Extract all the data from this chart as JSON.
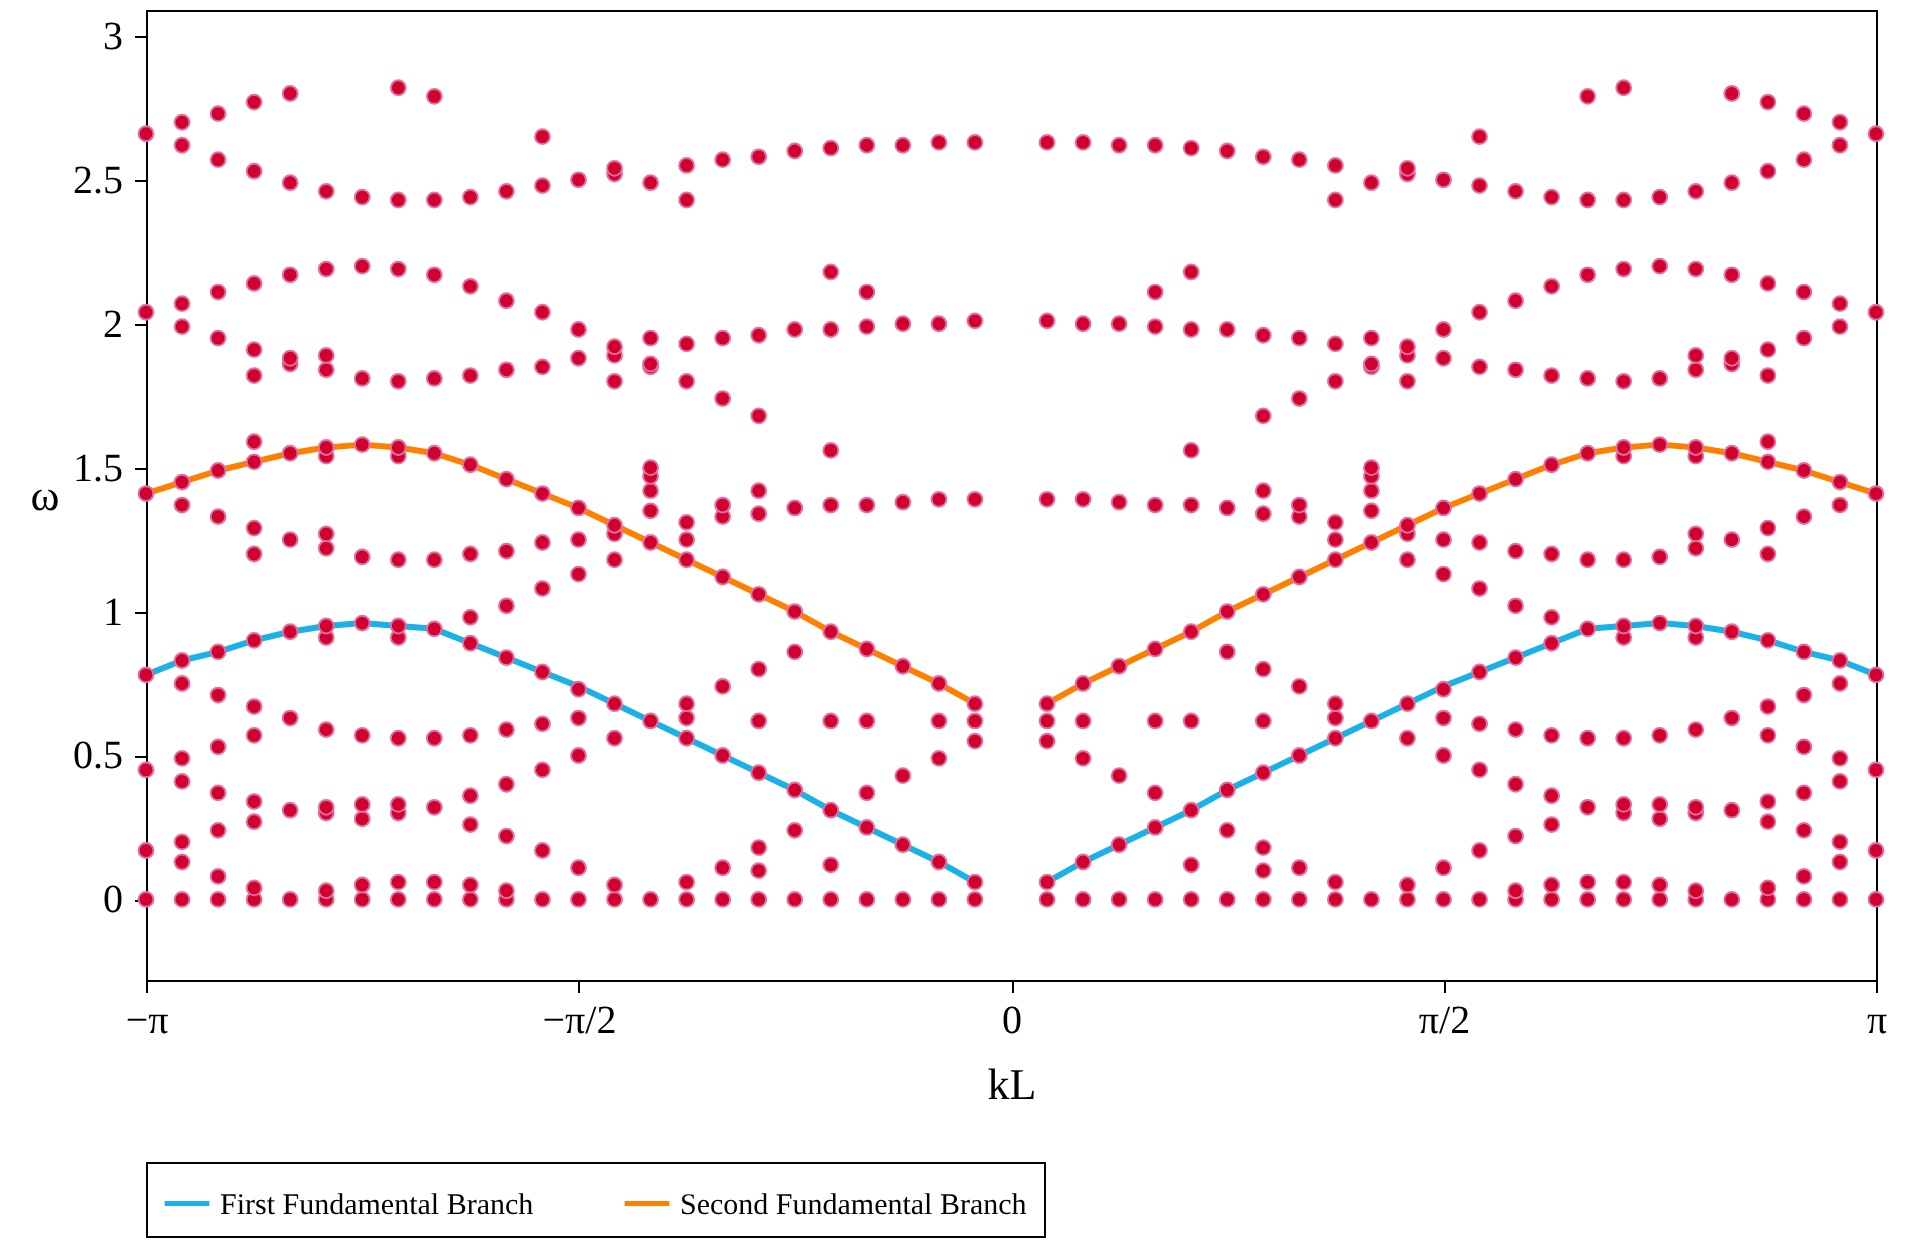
{
  "chart_data": {
    "type": "scatter",
    "xlabel": "kL",
    "ylabel": "ω",
    "xlim": [
      -3.1416,
      3.1416
    ],
    "ylim": [
      -0.28,
      3.09
    ],
    "xticks": [
      {
        "value": -3.1416,
        "label": "−π"
      },
      {
        "value": -1.5708,
        "label": "−π/2"
      },
      0,
      {
        "value": 1.5708,
        "label": "π/2"
      },
      {
        "value": 3.1416,
        "label": "π"
      }
    ],
    "yticks": [
      0,
      0.5,
      1,
      1.5,
      2,
      2.5,
      3
    ],
    "grid": false,
    "legend": "bottom",
    "line_style": "solid",
    "series": [
      {
        "name": "First Fundamental Branch",
        "type": "line",
        "color": "#1ab0e8",
        "x": [
          -3.1416,
          -3.0107,
          -2.8798,
          -2.7489,
          -2.618,
          -2.4871,
          -2.3562,
          -2.2253,
          -2.0944,
          -1.9635,
          -1.8326,
          -1.7017,
          -1.5708,
          -1.4399,
          -1.309,
          -1.1781,
          -1.0472,
          -0.9163,
          -0.7854,
          -0.6545,
          -0.5236,
          -0.3927,
          -0.2618,
          -0.1309
        ],
        "values": [
          0.78,
          0.83,
          0.86,
          0.9,
          0.93,
          0.95,
          0.96,
          0.95,
          0.94,
          0.89,
          0.84,
          0.79,
          0.74,
          0.68,
          0.62,
          0.56,
          0.5,
          0.44,
          0.38,
          0.31,
          0.25,
          0.19,
          0.13,
          0.06
        ]
      },
      {
        "type": "line",
        "color": "#1ab0e8",
        "x": [
          0.1309,
          0.2618,
          0.3927,
          0.5236,
          0.6545,
          0.7854,
          0.9163,
          1.0472,
          1.1781,
          1.309,
          1.4399,
          1.5708,
          1.7017,
          1.8326,
          1.9635,
          2.0944,
          2.2253,
          2.3562,
          2.4871,
          2.618,
          2.7489,
          2.8798,
          3.0107,
          3.1416
        ],
        "values": [
          0.06,
          0.13,
          0.19,
          0.25,
          0.31,
          0.38,
          0.44,
          0.5,
          0.56,
          0.62,
          0.68,
          0.74,
          0.79,
          0.84,
          0.89,
          0.94,
          0.95,
          0.96,
          0.95,
          0.93,
          0.9,
          0.86,
          0.83,
          0.78
        ]
      },
      {
        "name": "Second Fundamental Branch",
        "type": "line",
        "color": "#ff8000",
        "x": [
          -3.1416,
          -3.0107,
          -2.8798,
          -2.7489,
          -2.618,
          -2.4871,
          -2.3562,
          -2.2253,
          -2.0944,
          -1.9635,
          -1.8326,
          -1.7017,
          -1.5708,
          -1.4399,
          -1.309,
          -1.1781,
          -1.0472,
          -0.9163,
          -0.7854,
          -0.6545,
          -0.5236,
          -0.3927,
          -0.2618,
          -0.1309
        ],
        "values": [
          1.41,
          1.45,
          1.49,
          1.52,
          1.55,
          1.57,
          1.58,
          1.57,
          1.55,
          1.51,
          1.46,
          1.41,
          1.36,
          1.3,
          1.24,
          1.18,
          1.12,
          1.06,
          1.0,
          0.93,
          0.87,
          0.81,
          0.75,
          0.68
        ]
      },
      {
        "type": "line",
        "color": "#ff8000",
        "x": [
          0.1309,
          0.2618,
          0.3927,
          0.5236,
          0.6545,
          0.7854,
          0.9163,
          1.0472,
          1.1781,
          1.309,
          1.4399,
          1.5708,
          1.7017,
          1.8326,
          1.9635,
          2.0944,
          2.2253,
          2.3562,
          2.4871,
          2.618,
          2.7489,
          2.8798,
          3.0107,
          3.1416
        ],
        "values": [
          0.68,
          0.75,
          0.81,
          0.87,
          0.93,
          1.0,
          1.06,
          1.12,
          1.18,
          1.24,
          1.3,
          1.36,
          1.41,
          1.46,
          1.51,
          1.55,
          1.57,
          1.58,
          1.57,
          1.55,
          1.52,
          1.49,
          1.45,
          1.41
        ]
      },
      {
        "color": "#d0002f",
        "marker": "circle",
        "x": [
          -3.1416,
          -3.1416,
          -3.1416,
          -3.1416,
          -3.1416,
          -3.1416,
          -3.1416,
          -3.0107,
          -3.0107,
          -3.0107,
          -3.0107,
          -3.0107,
          -3.0107,
          -3.0107,
          -3.0107,
          -3.0107,
          -3.0107,
          -3.0107,
          -3.0107,
          -3.0107,
          -2.8798,
          -2.8798,
          -2.8798,
          -2.8798,
          -2.8798,
          -2.8798,
          -2.8798,
          -2.8798,
          -2.8798,
          -2.8798,
          -2.8798,
          -2.8798,
          -2.8798,
          -2.7489,
          -2.7489,
          -2.7489,
          -2.7489,
          -2.7489,
          -2.7489,
          -2.7489,
          -2.7489,
          -2.7489,
          -2.7489,
          -2.7489,
          -2.7489,
          -2.7489,
          -2.7489,
          -2.7489,
          -2.7489,
          -2.618,
          -2.618,
          -2.618,
          -2.618,
          -2.618,
          -2.618,
          -2.618,
          -2.618,
          -2.618,
          -2.618,
          -2.618,
          -2.4871,
          -2.4871,
          -2.4871,
          -2.4871,
          -2.4871,
          -2.4871,
          -2.4871,
          -2.4871,
          -2.4871,
          -2.4871,
          -2.4871,
          -2.4871,
          -2.4871,
          -2.4871,
          -2.4871,
          -2.3562,
          -2.3562,
          -2.3562,
          -2.3562,
          -2.3562,
          -2.3562,
          -2.3562,
          -2.3562,
          -2.3562,
          -2.3562,
          -2.3562,
          -2.2253,
          -2.2253,
          -2.2253,
          -2.2253,
          -2.2253,
          -2.2253,
          -2.2253,
          -2.2253,
          -2.2253,
          -2.2253,
          -2.2253,
          -2.2253,
          -2.2253,
          -2.2253,
          -2.0944,
          -2.0944,
          -2.0944,
          -2.0944,
          -2.0944,
          -2.0944,
          -2.0944,
          -2.0944,
          -2.0944,
          -2.0944,
          -2.0944,
          -1.9635,
          -1.9635,
          -1.9635,
          -1.9635,
          -1.9635,
          -1.9635,
          -1.9635,
          -1.9635,
          -1.9635,
          -1.9635,
          -1.9635,
          -1.9635,
          -1.8326,
          -1.8326,
          -1.8326,
          -1.8326,
          -1.8326,
          -1.8326,
          -1.8326,
          -1.8326,
          -1.8326,
          -1.8326,
          -1.8326,
          -1.8326,
          -1.7017,
          -1.7017,
          -1.7017,
          -1.7017,
          -1.7017,
          -1.7017,
          -1.7017,
          -1.7017,
          -1.7017,
          -1.7017,
          -1.7017,
          -1.7017,
          -1.5708,
          -1.5708,
          -1.5708,
          -1.5708,
          -1.5708,
          -1.5708,
          -1.5708,
          -1.5708,
          -1.5708,
          -1.5708,
          -1.5708,
          -1.4399,
          -1.4399,
          -1.4399,
          -1.4399,
          -1.4399,
          -1.4399,
          -1.4399,
          -1.4399,
          -1.4399,
          -1.4399,
          -1.4399,
          -1.4399,
          -1.309,
          -1.309,
          -1.309,
          -1.309,
          -1.309,
          -1.309,
          -1.309,
          -1.309,
          -1.309,
          -1.309,
          -1.309,
          -1.1781,
          -1.1781,
          -1.1781,
          -1.1781,
          -1.1781,
          -1.1781,
          -1.1781,
          -1.1781,
          -1.1781,
          -1.1781,
          -1.1781,
          -1.1781,
          -1.0472,
          -1.0472,
          -1.0472,
          -1.0472,
          -1.0472,
          -1.0472,
          -1.0472,
          -1.0472,
          -1.0472,
          -1.0472,
          -0.9163,
          -0.9163,
          -0.9163,
          -0.9163,
          -0.9163,
          -0.9163,
          -0.9163,
          -0.9163,
          -0.9163,
          -0.9163,
          -0.9163,
          -0.9163,
          -0.7854,
          -0.7854,
          -0.7854,
          -0.7854,
          -0.7854,
          -0.7854,
          -0.7854,
          -0.7854,
          -0.6545,
          -0.6545,
          -0.6545,
          -0.6545,
          -0.6545,
          -0.6545,
          -0.6545,
          -0.6545,
          -0.6545,
          -0.6545,
          -0.5236,
          -0.5236,
          -0.5236,
          -0.5236,
          -0.5236,
          -0.5236,
          -0.5236,
          -0.5236,
          -0.5236,
          -0.3927,
          -0.3927,
          -0.3927,
          -0.3927,
          -0.3927,
          -0.3927,
          -0.3927,
          -0.2618,
          -0.2618,
          -0.2618,
          -0.2618,
          -0.2618,
          -0.2618,
          -0.2618,
          -0.2618,
          -0.1309,
          -0.1309,
          -0.1309,
          -0.1309,
          -0.1309,
          -0.1309,
          -0.1309,
          -0.1309,
          3.1416,
          3.1416,
          3.1416,
          3.1416,
          3.1416,
          3.1416,
          3.1416,
          3.0107,
          3.0107,
          3.0107,
          3.0107,
          3.0107,
          3.0107,
          3.0107,
          3.0107,
          3.0107,
          3.0107,
          3.0107,
          3.0107,
          3.0107,
          2.8798,
          2.8798,
          2.8798,
          2.8798,
          2.8798,
          2.8798,
          2.8798,
          2.8798,
          2.8798,
          2.8798,
          2.8798,
          2.8798,
          2.8798,
          2.7489,
          2.7489,
          2.7489,
          2.7489,
          2.7489,
          2.7489,
          2.7489,
          2.7489,
          2.7489,
          2.7489,
          2.7489,
          2.7489,
          2.7489,
          2.7489,
          2.7489,
          2.7489,
          2.618,
          2.618,
          2.618,
          2.618,
          2.618,
          2.618,
          2.618,
          2.618,
          2.618,
          2.618,
          2.618,
          2.4871,
          2.4871,
          2.4871,
          2.4871,
          2.4871,
          2.4871,
          2.4871,
          2.4871,
          2.4871,
          2.4871,
          2.4871,
          2.4871,
          2.4871,
          2.4871,
          2.4871,
          2.3562,
          2.3562,
          2.3562,
          2.3562,
          2.3562,
          2.3562,
          2.3562,
          2.3562,
          2.3562,
          2.3562,
          2.3562,
          2.2253,
          2.2253,
          2.2253,
          2.2253,
          2.2253,
          2.2253,
          2.2253,
          2.2253,
          2.2253,
          2.2253,
          2.2253,
          2.2253,
          2.2253,
          2.2253,
          2.0944,
          2.0944,
          2.0944,
          2.0944,
          2.0944,
          2.0944,
          2.0944,
          2.0944,
          2.0944,
          2.0944,
          2.0944,
          1.9635,
          1.9635,
          1.9635,
          1.9635,
          1.9635,
          1.9635,
          1.9635,
          1.9635,
          1.9635,
          1.9635,
          1.9635,
          1.9635,
          1.8326,
          1.8326,
          1.8326,
          1.8326,
          1.8326,
          1.8326,
          1.8326,
          1.8326,
          1.8326,
          1.8326,
          1.8326,
          1.8326,
          1.7017,
          1.7017,
          1.7017,
          1.7017,
          1.7017,
          1.7017,
          1.7017,
          1.7017,
          1.7017,
          1.7017,
          1.7017,
          1.7017,
          1.5708,
          1.5708,
          1.5708,
          1.5708,
          1.5708,
          1.5708,
          1.5708,
          1.5708,
          1.5708,
          1.5708,
          1.5708,
          1.4399,
          1.4399,
          1.4399,
          1.4399,
          1.4399,
          1.4399,
          1.4399,
          1.4399,
          1.4399,
          1.4399,
          1.4399,
          1.4399,
          1.309,
          1.309,
          1.309,
          1.309,
          1.309,
          1.309,
          1.309,
          1.309,
          1.309,
          1.309,
          1.309,
          1.1781,
          1.1781,
          1.1781,
          1.1781,
          1.1781,
          1.1781,
          1.1781,
          1.1781,
          1.1781,
          1.1781,
          1.1781,
          1.1781,
          1.0472,
          1.0472,
          1.0472,
          1.0472,
          1.0472,
          1.0472,
          1.0472,
          1.0472,
          1.0472,
          1.0472,
          0.9163,
          0.9163,
          0.9163,
          0.9163,
          0.9163,
          0.9163,
          0.9163,
          0.9163,
          0.9163,
          0.9163,
          0.9163,
          0.9163,
          0.7854,
          0.7854,
          0.7854,
          0.7854,
          0.7854,
          0.7854,
          0.7854,
          0.7854,
          0.6545,
          0.6545,
          0.6545,
          0.6545,
          0.6545,
          0.6545,
          0.6545,
          0.6545,
          0.6545,
          0.6545,
          0.5236,
          0.5236,
          0.5236,
          0.5236,
          0.5236,
          0.5236,
          0.5236,
          0.5236,
          0.5236,
          0.3927,
          0.3927,
          0.3927,
          0.3927,
          0.3927,
          0.3927,
          0.3927,
          0.2618,
          0.2618,
          0.2618,
          0.2618,
          0.2618,
          0.2618,
          0.2618,
          0.2618,
          0.1309,
          0.1309,
          0.1309,
          0.1309,
          0.1309,
          0.1309,
          0.1309,
          0.1309
        ],
        "values": [
          0,
          0.17,
          0.45,
          0.78,
          1.41,
          2.04,
          2.66,
          0,
          0.13,
          0.2,
          0.41,
          0.49,
          0.75,
          0.83,
          1.37,
          1.45,
          1.99,
          2.07,
          2.62,
          2.7,
          0,
          0.08,
          0.24,
          0.37,
          0.53,
          0.71,
          0.86,
          1.33,
          1.49,
          1.95,
          2.11,
          2.57,
          2.73,
          0,
          0.04,
          0.27,
          0.34,
          0.57,
          0.67,
          0.9,
          1.2,
          1.29,
          1.52,
          1.59,
          1.82,
          1.91,
          2.14,
          2.53,
          2.77,
          0,
          0.31,
          0.63,
          0.93,
          1.25,
          1.55,
          1.86,
          1.88,
          2.17,
          2.49,
          2.8,
          0,
          0.03,
          0.3,
          0.32,
          0.59,
          0.91,
          0.95,
          1.22,
          1.27,
          1.54,
          1.57,
          1.84,
          1.89,
          2.19,
          2.46,
          0,
          0.05,
          0.28,
          0.33,
          0.57,
          0.96,
          1.19,
          1.58,
          1.81,
          2.2,
          2.44,
          0,
          0.06,
          0.3,
          0.33,
          0.56,
          0.91,
          0.95,
          1.18,
          1.54,
          1.57,
          1.8,
          2.19,
          2.43,
          2.82,
          0,
          0.06,
          0.32,
          0.56,
          0.94,
          1.18,
          1.55,
          1.81,
          2.17,
          2.43,
          2.79,
          0,
          0.05,
          0.26,
          0.36,
          0.57,
          0.89,
          0.98,
          1.2,
          1.51,
          1.82,
          2.13,
          2.44,
          0,
          0.03,
          0.22,
          0.4,
          0.59,
          0.84,
          1.02,
          1.21,
          1.46,
          1.84,
          2.08,
          2.46,
          0,
          0.17,
          0.45,
          0.61,
          0.79,
          1.08,
          1.24,
          1.41,
          1.85,
          2.04,
          2.48,
          2.65,
          0,
          0.11,
          0.5,
          0.63,
          0.73,
          1.13,
          1.25,
          1.36,
          1.88,
          1.98,
          2.5,
          0,
          0.05,
          0.56,
          0.68,
          1.18,
          1.27,
          1.3,
          1.8,
          1.89,
          1.92,
          2.52,
          2.54,
          0,
          0.62,
          1.24,
          1.35,
          1.42,
          1.47,
          1.5,
          1.85,
          1.86,
          1.95,
          2.49,
          0,
          0.06,
          0.56,
          0.63,
          0.68,
          1.18,
          1.25,
          1.31,
          1.8,
          1.93,
          2.43,
          2.55,
          0,
          0.11,
          0.5,
          0.74,
          1.12,
          1.33,
          1.37,
          1.74,
          1.95,
          2.57,
          0,
          0.1,
          0.18,
          0.44,
          0.62,
          0.8,
          1.06,
          1.34,
          1.42,
          1.68,
          1.96,
          2.58,
          0,
          0.24,
          0.38,
          0.86,
          1.0,
          1.36,
          1.98,
          2.6,
          0,
          0.12,
          0.31,
          0.62,
          0.93,
          1.37,
          1.56,
          1.98,
          2.18,
          2.61,
          0,
          0.25,
          0.37,
          0.62,
          0.87,
          1.37,
          1.99,
          2.11,
          2.62,
          0,
          0.19,
          0.43,
          0.81,
          1.38,
          2.0,
          2.62,
          0,
          0.13,
          0.49,
          0.62,
          0.75,
          1.39,
          2.0,
          2.63,
          0,
          0.06,
          0.55,
          0.62,
          0.68,
          1.39,
          2.01,
          2.63,
          0,
          0.17,
          0.45,
          0.78,
          1.41,
          2.04,
          2.66,
          0,
          0.13,
          0.2,
          0.41,
          0.49,
          0.75,
          0.83,
          1.37,
          1.45,
          1.99,
          2.07,
          2.62,
          2.7,
          0,
          0.08,
          0.24,
          0.37,
          0.53,
          0.71,
          0.86,
          1.33,
          1.49,
          1.95,
          2.11,
          2.57,
          2.73,
          0,
          0.04,
          0.27,
          0.34,
          0.57,
          0.67,
          0.9,
          1.2,
          1.29,
          1.52,
          1.59,
          1.82,
          1.91,
          2.14,
          2.53,
          2.77,
          0,
          0.31,
          0.63,
          0.93,
          1.25,
          1.55,
          1.86,
          1.88,
          2.17,
          2.49,
          2.8,
          0,
          0.03,
          0.3,
          0.32,
          0.59,
          0.91,
          0.95,
          1.22,
          1.27,
          1.54,
          1.57,
          1.84,
          1.89,
          2.19,
          2.46,
          0,
          0.05,
          0.28,
          0.33,
          0.57,
          0.96,
          1.19,
          1.58,
          1.81,
          2.2,
          2.44,
          0,
          0.06,
          0.3,
          0.33,
          0.56,
          0.91,
          0.95,
          1.18,
          1.54,
          1.57,
          1.8,
          2.19,
          2.43,
          2.82,
          0,
          0.06,
          0.32,
          0.56,
          0.94,
          1.18,
          1.55,
          1.81,
          2.17,
          2.43,
          2.79,
          0,
          0.05,
          0.26,
          0.36,
          0.57,
          0.89,
          0.98,
          1.2,
          1.51,
          1.82,
          2.13,
          2.44,
          0,
          0.03,
          0.22,
          0.4,
          0.59,
          0.84,
          1.02,
          1.21,
          1.46,
          1.84,
          2.08,
          2.46,
          0,
          0.17,
          0.45,
          0.61,
          0.79,
          1.08,
          1.24,
          1.41,
          1.85,
          2.04,
          2.48,
          2.65,
          0,
          0.11,
          0.5,
          0.63,
          0.73,
          1.13,
          1.25,
          1.36,
          1.88,
          1.98,
          2.5,
          0,
          0.05,
          0.56,
          0.68,
          1.18,
          1.27,
          1.3,
          1.8,
          1.89,
          1.92,
          2.52,
          2.54,
          0,
          0.62,
          1.24,
          1.35,
          1.42,
          1.47,
          1.5,
          1.85,
          1.86,
          1.95,
          2.49,
          0,
          0.06,
          0.56,
          0.63,
          0.68,
          1.18,
          1.25,
          1.31,
          1.8,
          1.93,
          2.43,
          2.55,
          0,
          0.11,
          0.5,
          0.74,
          1.12,
          1.33,
          1.37,
          1.74,
          1.95,
          2.57,
          0,
          0.1,
          0.18,
          0.44,
          0.62,
          0.8,
          1.06,
          1.34,
          1.42,
          1.68,
          1.96,
          2.58,
          0,
          0.24,
          0.38,
          0.86,
          1.0,
          1.36,
          1.98,
          2.6,
          0,
          0.12,
          0.31,
          0.62,
          0.93,
          1.37,
          1.56,
          1.98,
          2.18,
          2.61,
          0,
          0.25,
          0.37,
          0.62,
          0.87,
          1.37,
          1.99,
          2.11,
          2.62,
          0,
          0.19,
          0.43,
          0.81,
          1.38,
          2.0,
          2.62,
          0,
          0.13,
          0.49,
          0.62,
          0.75,
          1.39,
          2.0,
          2.63,
          0,
          0.06,
          0.55,
          0.62,
          0.68,
          1.39,
          2.01,
          2.63
        ]
      }
    ]
  }
}
